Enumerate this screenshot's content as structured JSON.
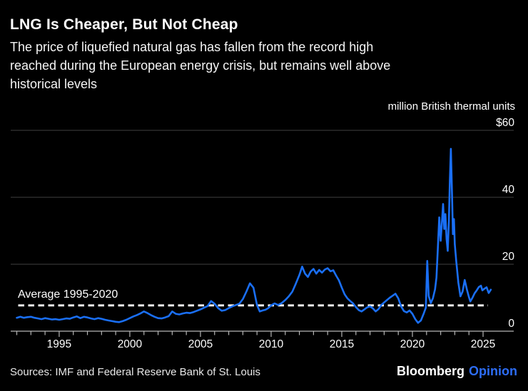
{
  "header": {
    "title": "LNG Is Cheaper, But Not Cheap",
    "subtitle_lines": [
      "The price of liquefied natural gas has fallen from the record high",
      "reached during the European energy crisis, but remains well above",
      "historical levels"
    ]
  },
  "footer": {
    "sources": "Sources: IMF and Federal Reserve Bank of St. Louis",
    "brand_name": "Bloomberg",
    "brand_suffix": "Opinion"
  },
  "colors": {
    "background": "#000000",
    "line_blue": "#1a6ff5",
    "opinion_blue": "#2d6df6",
    "grid": "#3f3f3f",
    "axis": "#b5b5b5",
    "text": "#ffffff",
    "dashed_line": "#ffffff"
  },
  "chart_data": {
    "type": "line",
    "title": "LNG Is Cheaper, But Not Cheap",
    "unit_label": "million British thermal units",
    "xlabel": "",
    "ylabel": "million British thermal units",
    "xlim": [
      1991.57,
      2027.17
    ],
    "ylim": [
      0,
      60
    ],
    "grid": "horizontal",
    "legend": "none",
    "y_ticks": [
      {
        "value": 60,
        "label": "$60"
      },
      {
        "value": 40,
        "label": "40"
      },
      {
        "value": 20,
        "label": "20"
      },
      {
        "value": 0,
        "label": "0"
      }
    ],
    "x_ticks": {
      "major": [
        1995,
        2000,
        2005,
        2010,
        2015,
        2020,
        2025
      ],
      "minor_start": 1992,
      "minor_end": 2025
    },
    "average_line": {
      "label": "Average 1995-2020",
      "value": 7.7,
      "style": "dashed",
      "color": "#ffffff",
      "x_range": [
        1992.1,
        2025.35
      ]
    },
    "series": [
      {
        "name": "LNG price",
        "color": "#1a6ff5",
        "x": [
          1992.0,
          1992.25,
          1992.5,
          1992.75,
          1993.0,
          1993.25,
          1993.5,
          1993.75,
          1994.0,
          1994.25,
          1994.5,
          1994.75,
          1995.0,
          1995.25,
          1995.5,
          1995.75,
          1996.0,
          1996.25,
          1996.5,
          1996.75,
          1997.0,
          1997.25,
          1997.5,
          1997.75,
          1998.0,
          1998.25,
          1998.5,
          1998.75,
          1999.0,
          1999.25,
          1999.5,
          1999.75,
          2000.0,
          2000.25,
          2000.5,
          2000.75,
          2001.0,
          2001.25,
          2001.5,
          2001.75,
          2002.0,
          2002.25,
          2002.5,
          2002.75,
          2003.0,
          2003.25,
          2003.5,
          2003.75,
          2004.0,
          2004.25,
          2004.5,
          2004.75,
          2005.0,
          2005.25,
          2005.5,
          2005.75,
          2006.0,
          2006.25,
          2006.5,
          2006.75,
          2007.0,
          2007.25,
          2007.5,
          2007.75,
          2008.0,
          2008.25,
          2008.5,
          2008.75,
          2009.0,
          2009.2,
          2009.4,
          2009.6,
          2009.8,
          2010.0,
          2010.25,
          2010.5,
          2010.75,
          2011.0,
          2011.25,
          2011.5,
          2011.75,
          2012.0,
          2012.2,
          2012.4,
          2012.6,
          2012.8,
          2013.0,
          2013.2,
          2013.4,
          2013.6,
          2013.8,
          2014.0,
          2014.2,
          2014.4,
          2014.6,
          2014.8,
          2015.0,
          2015.2,
          2015.4,
          2015.6,
          2015.8,
          2016.0,
          2016.2,
          2016.4,
          2016.6,
          2016.8,
          2017.0,
          2017.2,
          2017.4,
          2017.6,
          2017.8,
          2018.0,
          2018.2,
          2018.4,
          2018.6,
          2018.8,
          2019.0,
          2019.2,
          2019.4,
          2019.6,
          2019.8,
          2020.0,
          2020.2,
          2020.4,
          2020.6,
          2020.8,
          2020.95,
          2021.05,
          2021.15,
          2021.3,
          2021.45,
          2021.6,
          2021.7,
          2021.8,
          2021.9,
          2022.0,
          2022.08,
          2022.17,
          2022.25,
          2022.33,
          2022.42,
          2022.5,
          2022.58,
          2022.65,
          2022.72,
          2022.8,
          2022.87,
          2022.94,
          2023.0,
          2023.1,
          2023.25,
          2023.4,
          2023.55,
          2023.7,
          2023.85,
          2024.0,
          2024.1,
          2024.25,
          2024.4,
          2024.55,
          2024.7,
          2024.85,
          2024.95,
          2025.1,
          2025.25,
          2025.4,
          2025.55
        ],
        "y": [
          4.0,
          4.3,
          4.0,
          4.2,
          4.3,
          4.0,
          3.8,
          3.6,
          3.9,
          3.7,
          3.5,
          3.6,
          3.4,
          3.6,
          3.8,
          3.7,
          4.1,
          4.4,
          3.9,
          4.3,
          4.1,
          3.8,
          3.6,
          3.9,
          3.7,
          3.4,
          3.2,
          3.0,
          2.8,
          2.7,
          3.0,
          3.4,
          3.9,
          4.4,
          4.8,
          5.3,
          5.9,
          5.4,
          4.8,
          4.3,
          3.9,
          3.8,
          4.1,
          4.5,
          5.9,
          5.2,
          5.0,
          5.3,
          5.5,
          5.4,
          5.7,
          6.1,
          6.5,
          7.0,
          7.5,
          9.0,
          8.2,
          6.9,
          6.1,
          6.3,
          6.9,
          7.4,
          7.8,
          8.2,
          9.6,
          11.8,
          14.3,
          13.0,
          7.8,
          5.9,
          6.2,
          6.4,
          6.9,
          7.7,
          8.3,
          7.8,
          8.4,
          9.3,
          10.4,
          11.8,
          14.2,
          16.8,
          19.3,
          17.2,
          16.2,
          17.8,
          18.6,
          17.2,
          18.3,
          17.5,
          18.4,
          18.8,
          17.9,
          18.2,
          16.6,
          15.2,
          13.0,
          11.0,
          9.8,
          9.0,
          8.3,
          7.2,
          6.3,
          5.9,
          6.5,
          7.1,
          7.4,
          6.8,
          5.9,
          6.6,
          7.8,
          8.6,
          9.3,
          10.0,
          10.6,
          11.2,
          9.8,
          7.4,
          6.0,
          5.6,
          6.2,
          5.2,
          3.6,
          2.5,
          3.2,
          5.3,
          7.0,
          21.0,
          10.5,
          8.4,
          9.8,
          12.5,
          16.0,
          25.0,
          34.0,
          27.0,
          32.0,
          38.0,
          30.5,
          35.0,
          27.5,
          24.0,
          33.0,
          45.0,
          54.5,
          41.0,
          29.0,
          33.5,
          26.0,
          21.0,
          14.5,
          10.4,
          11.8,
          15.3,
          12.5,
          10.2,
          8.9,
          10.0,
          11.3,
          12.2,
          13.2,
          13.6,
          12.2,
          12.7,
          13.1,
          11.4,
          12.4
        ]
      }
    ]
  }
}
